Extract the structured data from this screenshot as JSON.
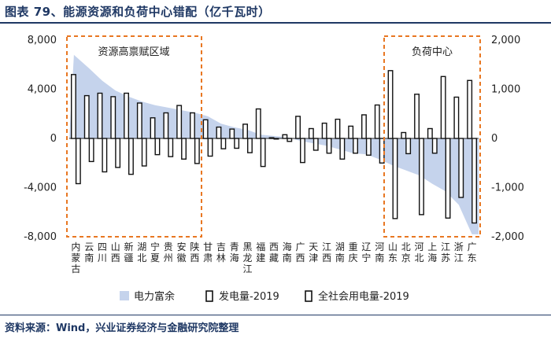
{
  "figure": {
    "title": "图表 79、能源资源和负荷中心错配（亿千瓦时）",
    "source": "资料来源：Wind，兴业证券经济与金融研究院整理"
  },
  "chart_data": {
    "type": "bar",
    "title": "能源资源和负荷中心错配（亿千瓦时）",
    "categories": [
      "内蒙古",
      "云南",
      "四川",
      "山西",
      "新疆",
      "湖北",
      "宁夏",
      "贵州",
      "安徽",
      "陕西",
      "甘肃",
      "吉林",
      "青海",
      "黑龙江",
      "福建",
      "西藏",
      "海南",
      "广西",
      "天津",
      "江西",
      "湖南",
      "重庆",
      "辽宁",
      "河南",
      "山东",
      "北京",
      "河北",
      "上海",
      "江苏",
      "浙江",
      "广东"
    ],
    "y_left": {
      "range": [
        -8000,
        8000
      ],
      "ticks": [
        -8000,
        -4000,
        0,
        4000,
        8000
      ],
      "tick_labels": [
        "-8,000",
        "-4,000",
        "0",
        "4,000",
        "8,000"
      ]
    },
    "y_right": {
      "range": [
        -2000,
        2000
      ],
      "ticks": [
        -2000,
        -1000,
        0,
        1000,
        2000
      ],
      "tick_labels": [
        "-2,000",
        "-1,000",
        "0",
        "1,000",
        "2,000"
      ]
    },
    "series": [
      {
        "name": "电力富余",
        "type": "area",
        "axis": "left",
        "color": "#c5d3ec",
        "values": [
          6800,
          5700,
          4700,
          3900,
          3400,
          3000,
          2700,
          2500,
          2300,
          2100,
          1800,
          1200,
          900,
          700,
          300,
          200,
          100,
          -200,
          -400,
          -600,
          -900,
          -1200,
          -1300,
          -1700,
          -2200,
          -2600,
          -3000,
          -3700,
          -4300,
          -5400,
          -7800
        ]
      },
      {
        "name": "发电量-2019",
        "type": "bar",
        "axis": "right",
        "values": [
          1300,
          870,
          920,
          850,
          920,
          720,
          420,
          520,
          670,
          520,
          380,
          230,
          190,
          290,
          600,
          15,
          75,
          450,
          200,
          310,
          390,
          250,
          480,
          680,
          1380,
          120,
          900,
          200,
          1260,
          840,
          1180
        ]
      },
      {
        "name": "全社会用电量-2019",
        "type": "bar",
        "axis": "right",
        "values": [
          -920,
          -470,
          -680,
          -590,
          -730,
          -560,
          -330,
          -370,
          -420,
          -510,
          -360,
          -210,
          -200,
          -290,
          -570,
          -5,
          -60,
          -490,
          -240,
          -300,
          -420,
          -300,
          -340,
          -500,
          -1630,
          -310,
          -1550,
          -300,
          -1620,
          -1200,
          -1720
        ]
      }
    ],
    "annotations": [
      "资源高禀赋区域",
      "负荷中心"
    ],
    "legend_position": "bottom"
  }
}
